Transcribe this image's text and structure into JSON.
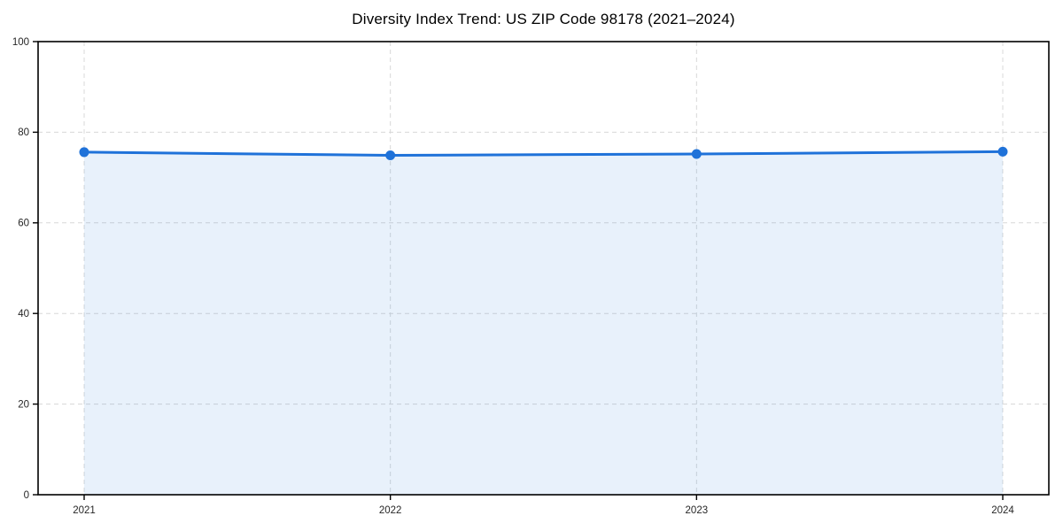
{
  "chart_data": {
    "type": "area",
    "title": "Diversity Index Trend: US ZIP Code 98178 (2021–2024)",
    "categories": [
      "2021",
      "2022",
      "2023",
      "2024"
    ],
    "series": [
      {
        "name": "Diversity Index",
        "values": [
          75.6,
          74.9,
          75.2,
          75.7
        ]
      }
    ],
    "xlabel": "",
    "ylabel": "",
    "ylim": [
      0,
      100
    ],
    "yticks": [
      0,
      20,
      40,
      60,
      80,
      100
    ],
    "grid": "dashed, both axes",
    "legend": "none",
    "marker": "circle",
    "fill_to_zero": true
  },
  "style": {
    "line_color": "#1f72d9",
    "marker_color": "#1f72d9",
    "fill_color": "rgba(31,114,217,0.10)",
    "grid_color": "#d8d8d8",
    "spine_color": "#000000",
    "tick_color": "#000000",
    "text_color": "#262626",
    "background_color": "#ffffff"
  }
}
